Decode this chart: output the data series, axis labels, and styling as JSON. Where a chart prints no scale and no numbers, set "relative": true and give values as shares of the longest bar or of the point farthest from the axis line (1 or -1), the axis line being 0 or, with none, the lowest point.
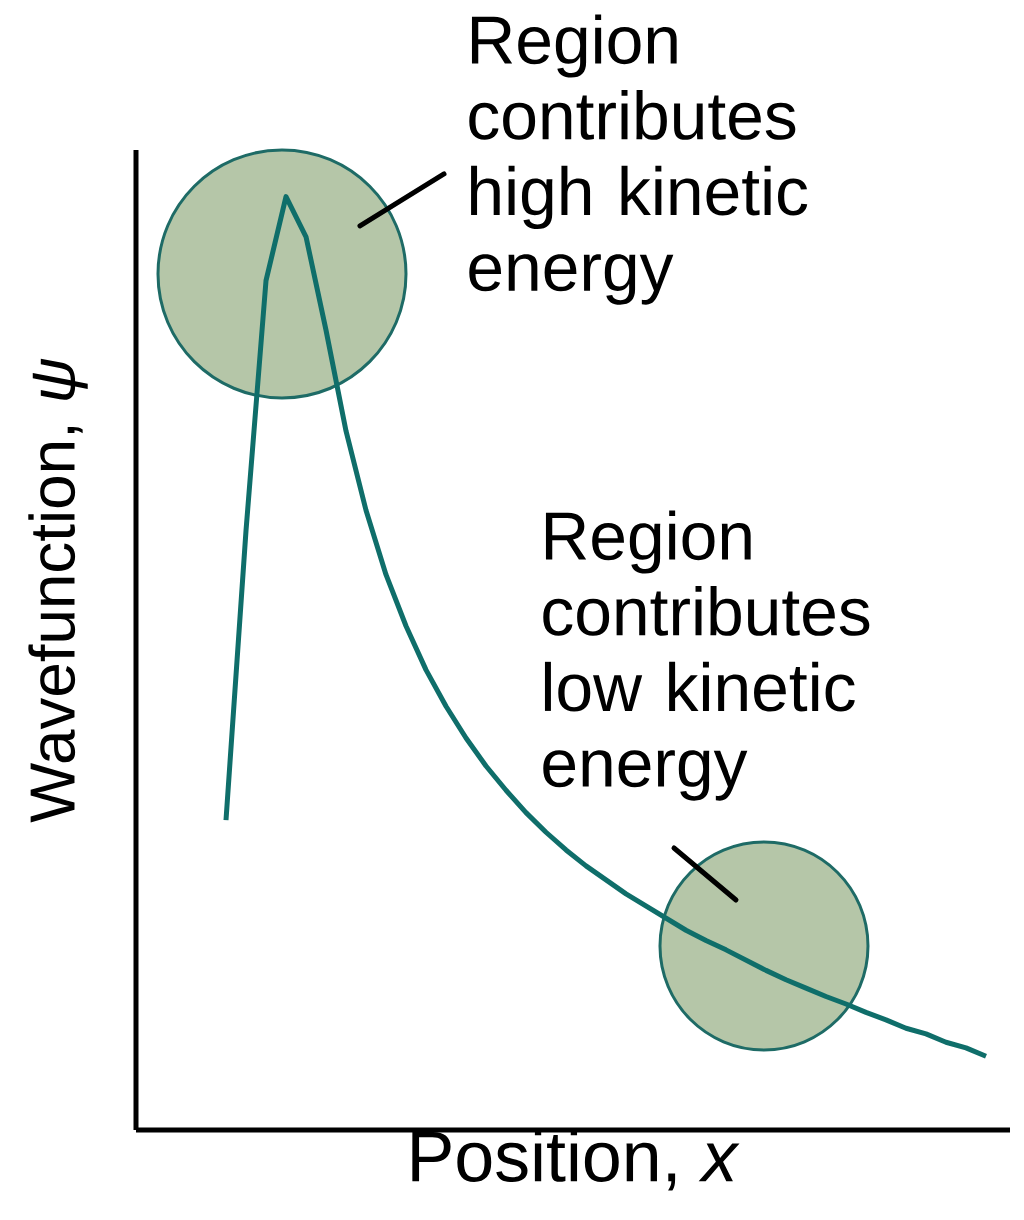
{
  "chart_data": {
    "type": "line",
    "relative": true,
    "xlabel": "Position, *x*",
    "ylabel": "Wavefunction, *ψ*",
    "annotations": [
      "Region contributes high kinetic energy",
      "Region contributes low kinetic energy"
    ],
    "categories": [
      null,
      null,
      null,
      null,
      null,
      null,
      null,
      null,
      null,
      null,
      null,
      null,
      null,
      null,
      null,
      null,
      null,
      null,
      null,
      null,
      null,
      null,
      null,
      null,
      null,
      null,
      null,
      null,
      null,
      null,
      null,
      null,
      null,
      null,
      null,
      null,
      null,
      null,
      null
    ],
    "series": [
      {
        "color": "#0f6e6a",
        "values": [
          0.332,
          0.642,
          0.91,
          1.0,
          0.957,
          0.857,
          0.749,
          0.664,
          0.595,
          0.54,
          0.493,
          0.454,
          0.42,
          0.39,
          0.364,
          0.34,
          0.319,
          0.3,
          0.283,
          0.268,
          0.253,
          0.24,
          0.227,
          0.214,
          0.203,
          0.193,
          0.182,
          0.171,
          0.161,
          0.152,
          0.143,
          0.135,
          0.126,
          0.118,
          0.109,
          0.103,
          0.094,
          0.088,
          0.079
        ]
      }
    ]
  }
}
